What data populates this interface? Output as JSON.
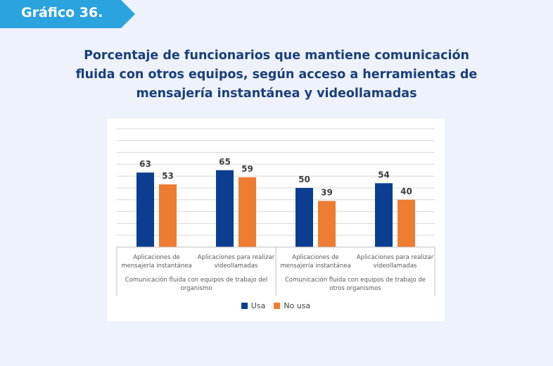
{
  "header": {
    "badge_label": "Gráfico 36.",
    "title_lines": [
      "Porcentaje de funcionarios que mantiene comunicación",
      "fluida con otros equipos, según acceso a herramientas de",
      "mensajería instantánea y videollamadas"
    ]
  },
  "colors": {
    "badge": "#2aa3de",
    "title": "#1a3f7a",
    "usa": "#0b3d91",
    "no_usa": "#ee7d31",
    "grid": "#d9d9d9"
  },
  "chart_data": {
    "type": "bar",
    "title": "Porcentaje de funcionarios que mantiene comunicación fluida con otros equipos, según acceso a herramientas de mensajería instantánea y videollamadas",
    "xlabel": "",
    "ylabel": "",
    "ylim": [
      0,
      100
    ],
    "grid": true,
    "legend_position": "bottom",
    "groups": [
      {
        "label": "Comunicación fluida con equipos de trabajo del organismo",
        "label_lines": [
          "Comunicación fluida con equipos de trabajo del",
          "organismo"
        ],
        "categories": [
          {
            "label_lines": [
              "Aplicaciones de",
              "mensajería instantánea"
            ],
            "values": [
              63,
              53
            ]
          },
          {
            "label_lines": [
              "Aplicaciones para realizar",
              "videollamadas"
            ],
            "values": [
              65,
              59
            ]
          }
        ]
      },
      {
        "label": "Comunicación fluida con equipos de trabajo de otros organismos",
        "label_lines": [
          "Comunicación fluida con equipos de trabajo de",
          "otros organismos"
        ],
        "categories": [
          {
            "label_lines": [
              "Aplicaciones de",
              "mensajería instantánea"
            ],
            "values": [
              50,
              39
            ]
          },
          {
            "label_lines": [
              "Aplicaciones para realizar",
              "videollamadas"
            ],
            "values": [
              54,
              40
            ]
          }
        ]
      }
    ],
    "series": [
      {
        "name": "Usa",
        "values": [
          63,
          65,
          50,
          54
        ]
      },
      {
        "name": "No usa",
        "values": [
          53,
          59,
          39,
          40
        ]
      }
    ]
  }
}
